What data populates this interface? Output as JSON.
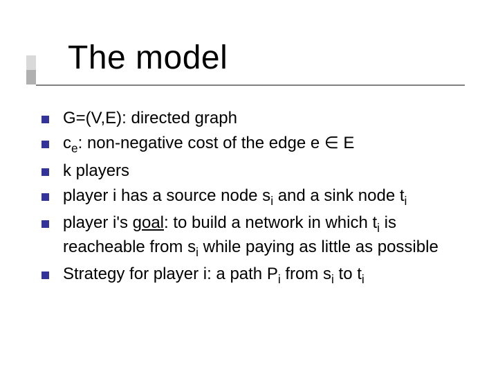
{
  "title": "The model",
  "bullets": [
    {
      "html": "G=(V,E): directed graph"
    },
    {
      "html": "c<span class=\"sub\">e</span>: non-negative cost of the edge e &isin; E"
    },
    {
      "html": "k players"
    },
    {
      "html": "player i has a source node s<span class=\"sub\">i</span> and a sink node t<span class=\"sub\">i</span>"
    },
    {
      "html": "player i's <u>goal</u>: to build a network in which t<span class=\"sub\">i</span> is reacheable from s<span class=\"sub\">i</span> while paying as little as possible"
    },
    {
      "html": "Strategy for player i: a path P<span class=\"sub\">i</span> from s<span class=\"sub\">i</span> to t<span class=\"sub\">i</span>"
    }
  ],
  "colors": {
    "bullet": "#333399",
    "line": "#808080",
    "accent_top": "#d9d9d9",
    "accent_bot": "#b0b0b0",
    "background": "#ffffff",
    "text": "#000000"
  },
  "typography": {
    "title_fontsize": 48,
    "body_fontsize": 24,
    "font_family": "Comic Sans MS"
  }
}
